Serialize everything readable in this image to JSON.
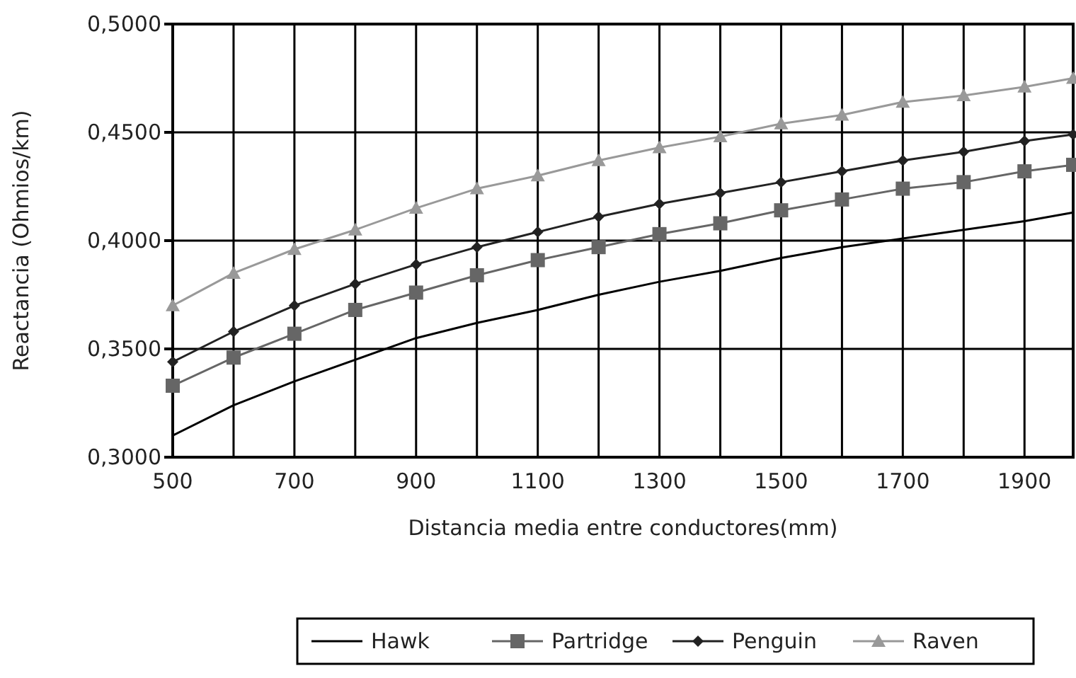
{
  "chart_data": {
    "type": "line",
    "xlabel": "Distancia media entre conductores(mm)",
    "ylabel": "Reactancia (Ohmios/km)",
    "x": [
      500,
      600,
      700,
      800,
      900,
      1000,
      1100,
      1200,
      1300,
      1400,
      1500,
      1600,
      1700,
      1800,
      1900,
      1980
    ],
    "xlim": [
      500,
      1980
    ],
    "xticks": [
      500,
      {
        "value": 600,
        "label": null
      },
      700,
      {
        "value": 800,
        "label": null
      },
      900,
      {
        "value": 1000,
        "label": null
      },
      1100,
      {
        "value": 1200,
        "label": null
      },
      1300,
      {
        "value": 1400,
        "label": null
      },
      1500,
      {
        "value": 1600,
        "label": null
      },
      1700,
      {
        "value": 1800,
        "label": null
      },
      1900
    ],
    "ylim": [
      0.3,
      0.5
    ],
    "yticks": [
      {
        "value": 0.3,
        "label": "0,3000"
      },
      {
        "value": 0.35,
        "label": "0,3500"
      },
      {
        "value": 0.4,
        "label": "0,4000"
      },
      {
        "value": 0.45,
        "label": "0,4500"
      },
      {
        "value": 0.5,
        "label": "0,5000"
      }
    ],
    "grid": true,
    "legend": "bottom",
    "line_style": "solid",
    "series": [
      {
        "name": "Hawk",
        "color": "#000000",
        "marker": "none",
        "values": [
          0.31,
          0.324,
          0.335,
          0.345,
          0.355,
          0.362,
          0.368,
          0.375,
          0.381,
          0.386,
          0.392,
          0.397,
          0.401,
          0.405,
          0.409,
          0.413
        ]
      },
      {
        "name": "Partridge",
        "color": "#666666",
        "marker": "square",
        "values": [
          0.333,
          0.346,
          0.357,
          0.368,
          0.376,
          0.384,
          0.391,
          0.397,
          0.403,
          0.408,
          0.414,
          0.419,
          0.424,
          0.427,
          0.432,
          0.435
        ]
      },
      {
        "name": "Penguin",
        "color": "#222222",
        "marker": "diamond",
        "values": [
          0.344,
          0.358,
          0.37,
          0.38,
          0.389,
          0.397,
          0.404,
          0.411,
          0.417,
          0.422,
          0.427,
          0.432,
          0.437,
          0.441,
          0.446,
          0.449
        ]
      },
      {
        "name": "Raven",
        "color": "#999999",
        "marker": "triangle",
        "values": [
          0.37,
          0.385,
          0.396,
          0.405,
          0.415,
          0.424,
          0.43,
          0.437,
          0.443,
          0.448,
          0.454,
          0.458,
          0.464,
          0.467,
          0.471,
          0.475
        ]
      }
    ]
  }
}
